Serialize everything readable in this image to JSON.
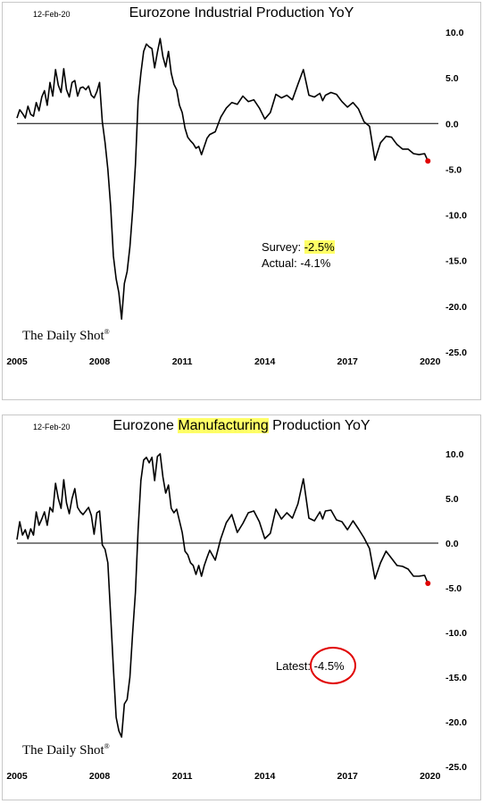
{
  "chart_data": [
    {
      "type": "line",
      "date_stamp": "12-Feb-20",
      "title": "Eurozone Industrial Production YoY",
      "title_highlight": "",
      "title_parts": [
        "Eurozone Industrial Production YoY",
        "",
        ""
      ],
      "xlim": [
        2005.0,
        2020.3
      ],
      "ylim": [
        -25,
        10
      ],
      "x_ticks": [
        "2005",
        "2008",
        "2011",
        "2014",
        "2017",
        "2020"
      ],
      "y_ticks": [
        "10.0",
        "5.0",
        "0.0",
        "-5.0",
        "-10.0",
        "-15.0",
        "-20.0",
        "-25.0"
      ],
      "brand": "The Daily Shot",
      "brand_mark": "®",
      "annotations": {
        "survey_label": "Survey:",
        "survey_value": "-2.5%",
        "actual_label": "Actual:",
        "actual_value": "-4.1%"
      },
      "last_point": {
        "x": 2019.92,
        "y": -4.1
      },
      "series": [
        {
          "x": [
            2005.0,
            2005.1,
            2005.2,
            2005.3,
            2005.4,
            2005.5,
            2005.6,
            2005.7,
            2005.8,
            2005.9,
            2006.0,
            2006.1,
            2006.2,
            2006.3,
            2006.4,
            2006.5,
            2006.6,
            2006.7,
            2006.8,
            2006.9,
            2007.0,
            2007.1,
            2007.2,
            2007.3,
            2007.4,
            2007.5,
            2007.6,
            2007.7,
            2007.8,
            2007.9,
            2008.0,
            2008.1,
            2008.2,
            2008.3,
            2008.4,
            2008.5,
            2008.6,
            2008.7,
            2008.8,
            2008.9,
            2009.0,
            2009.1,
            2009.2,
            2009.3,
            2009.4,
            2009.5,
            2009.6,
            2009.7,
            2009.8,
            2009.9,
            2010.0,
            2010.1,
            2010.2,
            2010.3,
            2010.4,
            2010.5,
            2010.6,
            2010.7,
            2010.8,
            2010.9,
            2011.0,
            2011.1,
            2011.2,
            2011.3,
            2011.4,
            2011.5,
            2011.6,
            2011.7,
            2011.8,
            2011.9,
            2012.0,
            2012.2,
            2012.4,
            2012.6,
            2012.8,
            2013.0,
            2013.2,
            2013.4,
            2013.6,
            2013.8,
            2014.0,
            2014.2,
            2014.4,
            2014.6,
            2014.8,
            2015.0,
            2015.2,
            2015.4,
            2015.6,
            2015.8,
            2016.0,
            2016.1,
            2016.2,
            2016.4,
            2016.6,
            2016.8,
            2017.0,
            2017.2,
            2017.4,
            2017.6,
            2017.8,
            2018.0,
            2018.2,
            2018.4,
            2018.6,
            2018.8,
            2019.0,
            2019.2,
            2019.4,
            2019.6,
            2019.8,
            2019.92
          ],
          "y": [
            0.6,
            1.5,
            1.1,
            0.6,
            1.9,
            1.0,
            0.8,
            2.3,
            1.4,
            2.9,
            3.6,
            2.0,
            4.5,
            3.0,
            5.9,
            4.2,
            3.4,
            6.0,
            3.7,
            2.9,
            4.5,
            4.7,
            3.0,
            3.9,
            4.0,
            3.7,
            4.1,
            3.1,
            2.8,
            3.5,
            4.5,
            0.2,
            -2.1,
            -5.0,
            -9.0,
            -14.5,
            -17.0,
            -18.5,
            -21.4,
            -17.5,
            -16.2,
            -13.5,
            -9.5,
            -4.5,
            2.5,
            5.5,
            7.9,
            8.7,
            8.4,
            8.2,
            6.1,
            7.8,
            9.3,
            7.3,
            6.2,
            7.9,
            5.5,
            4.3,
            3.7,
            2.0,
            1.2,
            -0.5,
            -1.5,
            -1.9,
            -2.2,
            -2.7,
            -2.5,
            -3.4,
            -2.5,
            -1.6,
            -1.2,
            -0.9,
            0.7,
            1.7,
            2.3,
            2.1,
            3.0,
            2.4,
            2.6,
            1.7,
            0.5,
            1.2,
            3.2,
            2.8,
            3.1,
            2.6,
            4.3,
            5.9,
            3.1,
            2.9,
            3.3,
            2.5,
            3.1,
            3.4,
            3.2,
            2.4,
            1.8,
            2.3,
            1.6,
            0.2,
            -0.3,
            -4.0,
            -2.1,
            -1.4,
            -1.5,
            -2.3,
            -2.8,
            -2.8,
            -3.3,
            -3.4,
            -3.3,
            -4.1
          ]
        }
      ]
    },
    {
      "type": "line",
      "date_stamp": "12-Feb-20",
      "title": "Eurozone Manufacturing Production YoY",
      "title_highlight": "Manufacturing",
      "title_parts": [
        "Eurozone ",
        "Manufacturing",
        " Production YoY"
      ],
      "xlim": [
        2005.0,
        2020.3
      ],
      "ylim": [
        -25,
        10
      ],
      "x_ticks": [
        "2005",
        "2008",
        "2011",
        "2014",
        "2017",
        "2020"
      ],
      "y_ticks": [
        "10.0",
        "5.0",
        "0.0",
        "-5.0",
        "-10.0",
        "-15.0",
        "-20.0",
        "-25.0"
      ],
      "brand": "The Daily Shot",
      "brand_mark": "®",
      "annotations": {
        "latest_label": "Latest:",
        "latest_value": "-4.5%"
      },
      "last_point": {
        "x": 2019.92,
        "y": -4.5
      },
      "series": [
        {
          "x": [
            2005.0,
            2005.1,
            2005.2,
            2005.3,
            2005.4,
            2005.5,
            2005.6,
            2005.7,
            2005.8,
            2005.9,
            2006.0,
            2006.1,
            2006.2,
            2006.3,
            2006.4,
            2006.5,
            2006.6,
            2006.7,
            2006.8,
            2006.9,
            2007.0,
            2007.1,
            2007.2,
            2007.3,
            2007.4,
            2007.5,
            2007.6,
            2007.7,
            2007.8,
            2007.9,
            2008.0,
            2008.1,
            2008.2,
            2008.3,
            2008.4,
            2008.5,
            2008.6,
            2008.7,
            2008.8,
            2008.9,
            2009.0,
            2009.1,
            2009.2,
            2009.3,
            2009.4,
            2009.5,
            2009.6,
            2009.7,
            2009.8,
            2009.9,
            2010.0,
            2010.1,
            2010.2,
            2010.3,
            2010.4,
            2010.5,
            2010.6,
            2010.7,
            2010.8,
            2010.9,
            2011.0,
            2011.1,
            2011.2,
            2011.3,
            2011.4,
            2011.5,
            2011.6,
            2011.7,
            2011.8,
            2011.9,
            2012.0,
            2012.2,
            2012.4,
            2012.6,
            2012.8,
            2013.0,
            2013.2,
            2013.4,
            2013.6,
            2013.8,
            2014.0,
            2014.2,
            2014.4,
            2014.6,
            2014.8,
            2015.0,
            2015.2,
            2015.4,
            2015.6,
            2015.8,
            2016.0,
            2016.1,
            2016.2,
            2016.4,
            2016.6,
            2016.8,
            2017.0,
            2017.2,
            2017.4,
            2017.6,
            2017.8,
            2018.0,
            2018.2,
            2018.4,
            2018.6,
            2018.8,
            2019.0,
            2019.2,
            2019.4,
            2019.6,
            2019.8,
            2019.92
          ],
          "y": [
            0.4,
            2.4,
            0.9,
            1.5,
            0.5,
            1.6,
            0.9,
            3.5,
            2.0,
            2.7,
            3.5,
            2.0,
            4.0,
            3.5,
            6.7,
            5.0,
            3.9,
            7.1,
            4.5,
            3.3,
            5.0,
            6.1,
            4.0,
            3.5,
            3.2,
            3.6,
            4.0,
            3.1,
            1.0,
            3.4,
            3.6,
            -0.2,
            -0.7,
            -2.2,
            -8.0,
            -14.0,
            -19.5,
            -21.0,
            -21.7,
            -18.0,
            -17.5,
            -15.0,
            -10.0,
            -5.5,
            1.5,
            7.0,
            9.3,
            9.6,
            9.0,
            9.6,
            7.0,
            9.7,
            10.0,
            7.4,
            5.6,
            6.5,
            3.9,
            3.4,
            3.8,
            2.5,
            1.2,
            -0.9,
            -1.3,
            -2.2,
            -2.5,
            -3.5,
            -2.5,
            -3.7,
            -2.5,
            -1.6,
            -0.8,
            -1.9,
            0.5,
            2.3,
            3.2,
            1.2,
            2.2,
            3.4,
            3.6,
            2.4,
            0.5,
            1.1,
            3.8,
            2.7,
            3.4,
            2.8,
            4.4,
            7.2,
            2.8,
            2.5,
            3.5,
            2.7,
            3.6,
            3.7,
            2.6,
            2.4,
            1.5,
            2.5,
            1.6,
            0.6,
            -0.6,
            -4.0,
            -2.2,
            -0.9,
            -1.7,
            -2.5,
            -2.6,
            -2.9,
            -3.7,
            -3.7,
            -3.6,
            -4.5
          ]
        }
      ]
    }
  ]
}
